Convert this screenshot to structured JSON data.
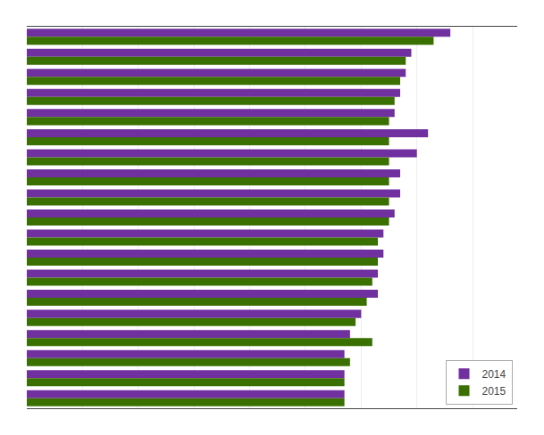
{
  "chart_data": {
    "type": "bar",
    "orientation": "horizontal",
    "categories": [
      null,
      null,
      null,
      null,
      null,
      null,
      null,
      null,
      null,
      null,
      null,
      null,
      null,
      null,
      null,
      null,
      null,
      null,
      null
    ],
    "series": [
      {
        "name": "2014",
        "color": "#7030a0",
        "values": [
          76,
          69,
          68,
          67,
          66,
          72,
          70,
          67,
          67,
          66,
          64,
          64,
          63,
          63,
          60,
          58,
          57,
          57,
          57
        ]
      },
      {
        "name": "2015",
        "color": "#3a7000",
        "values": [
          73,
          68,
          67,
          66,
          65,
          65,
          65,
          65,
          65,
          65,
          63,
          63,
          62,
          61,
          59,
          62,
          58,
          57,
          57
        ]
      }
    ],
    "xlim": [
      0,
      88
    ],
    "xticks": [
      0,
      10,
      20,
      30,
      40,
      50,
      60,
      70,
      80
    ],
    "grid": true,
    "legend": "lower right",
    "tick_labels": false
  }
}
